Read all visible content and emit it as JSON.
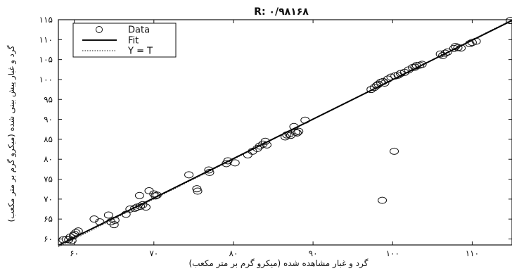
{
  "chart_data": {
    "type": "scatter",
    "title": "R: ۰/۹۸۱۶۸",
    "xlabel": "گرد و غبار مشاهده شده (میکرو گرم بر متر مکعب)",
    "ylabel": "گرد و غبار پیش بینی شده (میکرو گرم بر متر مکعب)",
    "xlim": [
      58,
      115
    ],
    "ylim": [
      58.5,
      115
    ],
    "xticks": [
      {
        "value": 60,
        "label": "۶۰"
      },
      {
        "value": 70,
        "label": "۷۰"
      },
      {
        "value": 80,
        "label": "۸۰"
      },
      {
        "value": 90,
        "label": "۹۰"
      },
      {
        "value": 100,
        "label": "۱۰۰"
      },
      {
        "value": 110,
        "label": "۱۱۰"
      }
    ],
    "yticks": [
      {
        "value": 60,
        "label": "۶۰"
      },
      {
        "value": 65,
        "label": "۶۵"
      },
      {
        "value": 70,
        "label": "۷۰"
      },
      {
        "value": 75,
        "label": "۷۵"
      },
      {
        "value": 80,
        "label": "۸۰"
      },
      {
        "value": 85,
        "label": "۸۵"
      },
      {
        "value": 90,
        "label": "۹۰"
      },
      {
        "value": 95,
        "label": "۹۵"
      },
      {
        "value": 100,
        "label": "۱۰۰"
      },
      {
        "value": 105,
        "label": "۱۰۵"
      },
      {
        "value": 110,
        "label": "۱۱۰"
      },
      {
        "value": 115,
        "label": "۱۱۵"
      }
    ],
    "legend": {
      "position": "top-left",
      "entries": [
        {
          "label": "Data",
          "style": "circle-marker"
        },
        {
          "label": "Fit",
          "style": "solid-line"
        },
        {
          "label": "Y = T",
          "style": "dotted-line"
        }
      ]
    },
    "series": [
      {
        "name": "Data",
        "points": [
          [
            58.6,
            59.8
          ],
          [
            59.0,
            59.9
          ],
          [
            59.3,
            59.8
          ],
          [
            59.5,
            60.5
          ],
          [
            59.7,
            59.6
          ],
          [
            59.9,
            60.8
          ],
          [
            60.0,
            61.2
          ],
          [
            60.2,
            61.6
          ],
          [
            60.5,
            62.0
          ],
          [
            62.5,
            65.0
          ],
          [
            63.2,
            64.3
          ],
          [
            64.3,
            66.0
          ],
          [
            64.6,
            64.3
          ],
          [
            65.0,
            63.6
          ],
          [
            65.1,
            64.7
          ],
          [
            66.5,
            66.2
          ],
          [
            67.0,
            67.5
          ],
          [
            67.6,
            67.7
          ],
          [
            67.9,
            68.0
          ],
          [
            68.3,
            68.2
          ],
          [
            68.6,
            68.6
          ],
          [
            68.2,
            70.9
          ],
          [
            69.0,
            68.0
          ],
          [
            69.4,
            72.1
          ],
          [
            70.0,
            71.3
          ],
          [
            70.2,
            70.8
          ],
          [
            70.4,
            71.0
          ],
          [
            74.4,
            76.1
          ],
          [
            75.4,
            72.6
          ],
          [
            75.5,
            72.0
          ],
          [
            76.9,
            77.3
          ],
          [
            77.0,
            76.7
          ],
          [
            79.1,
            78.9
          ],
          [
            79.3,
            79.6
          ],
          [
            80.2,
            79.1
          ],
          [
            81.8,
            81.1
          ],
          [
            82.4,
            82.0
          ],
          [
            83.0,
            82.7
          ],
          [
            83.3,
            83.3
          ],
          [
            83.7,
            83.8
          ],
          [
            84.0,
            84.5
          ],
          [
            84.2,
            83.6
          ],
          [
            86.5,
            85.6
          ],
          [
            86.7,
            86.1
          ],
          [
            87.0,
            86.3
          ],
          [
            87.2,
            86.0
          ],
          [
            87.8,
            86.8
          ],
          [
            88.0,
            86.6
          ],
          [
            87.6,
            88.2
          ],
          [
            88.2,
            87.0
          ],
          [
            89.0,
            89.8
          ],
          [
            97.3,
            97.5
          ],
          [
            97.7,
            98.0
          ],
          [
            98.0,
            98.5
          ],
          [
            98.2,
            98.8
          ],
          [
            98.5,
            99.3
          ],
          [
            98.8,
            99.5
          ],
          [
            99.0,
            99.1
          ],
          [
            99.4,
            100.1
          ],
          [
            99.8,
            100.6
          ],
          [
            100.3,
            100.9
          ],
          [
            100.7,
            101.1
          ],
          [
            101.0,
            101.5
          ],
          [
            101.5,
            101.8
          ],
          [
            102.0,
            102.4
          ],
          [
            102.5,
            103.0
          ],
          [
            102.8,
            103.1
          ],
          [
            103.0,
            103.5
          ],
          [
            103.4,
            103.6
          ],
          [
            103.7,
            103.8
          ],
          [
            106.0,
            106.4
          ],
          [
            106.3,
            106.0
          ],
          [
            106.6,
            106.6
          ],
          [
            106.9,
            106.9
          ],
          [
            107.7,
            107.8
          ],
          [
            107.9,
            108.3
          ],
          [
            108.2,
            108.0
          ],
          [
            108.6,
            107.9
          ],
          [
            109.7,
            109.0
          ],
          [
            110.0,
            109.3
          ],
          [
            110.5,
            109.6
          ],
          [
            114.8,
            114.8
          ],
          [
            100.2,
            82.0
          ],
          [
            98.7,
            69.7
          ]
        ]
      }
    ],
    "fit": {
      "name": "Fit",
      "line": [
        [
          58,
          58.4
        ],
        [
          115,
          114.8
        ]
      ]
    },
    "identity": {
      "name": "Y = T",
      "line": [
        [
          58,
          58
        ],
        [
          115,
          115
        ]
      ]
    },
    "grid": false
  }
}
